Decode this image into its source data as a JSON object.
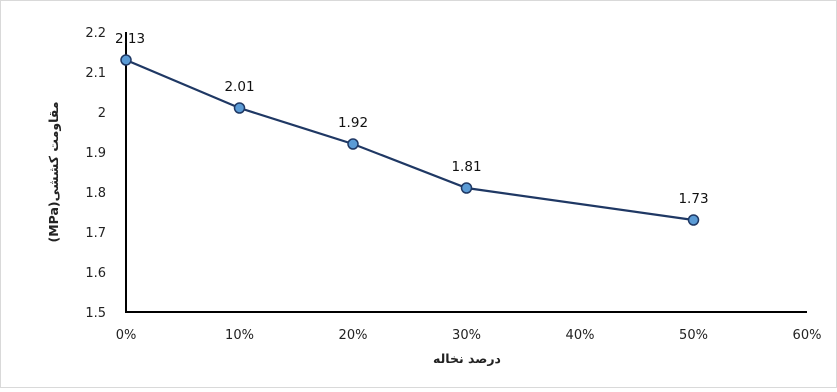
{
  "chart_data": {
    "type": "line",
    "x": [
      "0%",
      "10%",
      "20%",
      "30%",
      "50%"
    ],
    "x_values": [
      0,
      10,
      20,
      30,
      50
    ],
    "values": [
      2.13,
      2.01,
      1.92,
      1.81,
      1.73
    ],
    "data_labels": [
      "2.13",
      "2.01",
      "1.92",
      "1.81",
      "1.73"
    ],
    "xlabel": "درصد نخاله",
    "ylabel": "مقاومت کششی(MPa)",
    "xlim": [
      0,
      60
    ],
    "ylim": [
      1.5,
      2.2
    ],
    "x_ticks": [
      0,
      10,
      20,
      30,
      40,
      50,
      60
    ],
    "x_tick_labels": [
      "0%",
      "10%",
      "20%",
      "30%",
      "40%",
      "50%",
      "60%"
    ],
    "y_ticks": [
      1.5,
      1.6,
      1.7,
      1.8,
      1.9,
      2.0,
      2.1,
      2.2
    ],
    "y_tick_labels": [
      "1.5",
      "1.6",
      "1.7",
      "1.8",
      "1.9",
      "2",
      "2.1",
      "2.2"
    ],
    "grid": false,
    "legend": "none",
    "colors": {
      "line": "#1F3864",
      "marker_fill": "#5B9BD5",
      "marker_stroke": "#1F3864",
      "axis": "#000000",
      "frame": "#d9d9d9"
    }
  }
}
